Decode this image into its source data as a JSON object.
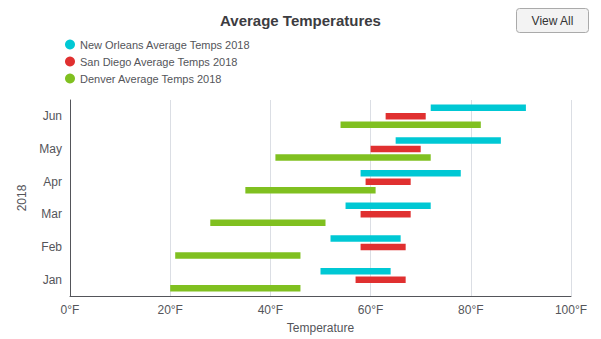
{
  "chart_data": {
    "type": "bar",
    "orientation": "horizontal",
    "title": "Average Temperatures",
    "xlabel": "Temperature",
    "ylabel": "2018",
    "categories": [
      "Jan",
      "Feb",
      "Mar",
      "Apr",
      "May",
      "Jun"
    ],
    "series": [
      {
        "name": "New Orleans Average Temps 2018",
        "color": "#00c8d4",
        "values": [
          [
            50,
            64
          ],
          [
            52,
            66
          ],
          [
            55,
            72
          ],
          [
            58,
            78
          ],
          [
            65,
            86
          ],
          [
            72,
            91
          ]
        ]
      },
      {
        "name": "San Diego Average Temps 2018",
        "color": "#e03030",
        "values": [
          [
            57,
            67
          ],
          [
            58,
            67
          ],
          [
            58,
            68
          ],
          [
            59,
            68
          ],
          [
            60,
            70
          ],
          [
            63,
            71
          ]
        ]
      },
      {
        "name": "Denver Average Temps 2018",
        "color": "#80c020",
        "values": [
          [
            20,
            46
          ],
          [
            21,
            46
          ],
          [
            28,
            51
          ],
          [
            35,
            61
          ],
          [
            41,
            72
          ],
          [
            54,
            82
          ]
        ]
      }
    ],
    "xlim": [
      0,
      100
    ],
    "xticks": [
      {
        "value": 0,
        "label": "0°F"
      },
      {
        "value": 20,
        "label": "20°F"
      },
      {
        "value": 40,
        "label": "40°F"
      },
      {
        "value": 60,
        "label": "60°F"
      },
      {
        "value": 80,
        "label": "80°F"
      },
      {
        "value": 100,
        "label": "100°F"
      }
    ],
    "grid": true,
    "legend": "upper left",
    "annotations": [
      "View All"
    ]
  }
}
